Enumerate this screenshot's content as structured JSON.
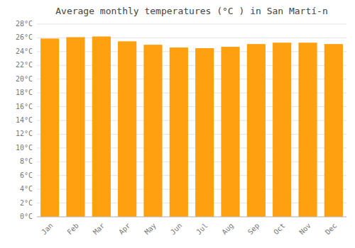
{
  "chart_data": {
    "type": "bar",
    "title": "Average monthly temperatures (°C ) in San Martí-n",
    "categories": [
      "Jan",
      "Feb",
      "Mar",
      "Apr",
      "May",
      "Jun",
      "Jul",
      "Aug",
      "Sep",
      "Oct",
      "Nov",
      "Dec"
    ],
    "values": [
      25.9,
      26.1,
      26.2,
      25.5,
      25.0,
      24.6,
      24.5,
      24.7,
      25.1,
      25.3,
      25.3,
      25.1
    ],
    "color": "#FFA010",
    "ylim": [
      0,
      28
    ],
    "yticks": [
      {
        "value": 0,
        "label": "0°C"
      },
      {
        "value": 2,
        "label": "2°C"
      },
      {
        "value": 4,
        "label": "4°C"
      },
      {
        "value": 6,
        "label": "6°C"
      },
      {
        "value": 8,
        "label": "8°C"
      },
      {
        "value": 10,
        "label": "10°C"
      },
      {
        "value": 12,
        "label": "12°C"
      },
      {
        "value": 14,
        "label": "14°C"
      },
      {
        "value": 16,
        "label": "16°C"
      },
      {
        "value": 18,
        "label": "18°C"
      },
      {
        "value": 20,
        "label": "20°C"
      },
      {
        "value": 22,
        "label": "22°C"
      },
      {
        "value": 24,
        "label": "24°C"
      },
      {
        "value": 26,
        "label": "26°C"
      },
      {
        "value": 28,
        "label": "28°C"
      }
    ],
    "grid": true
  }
}
